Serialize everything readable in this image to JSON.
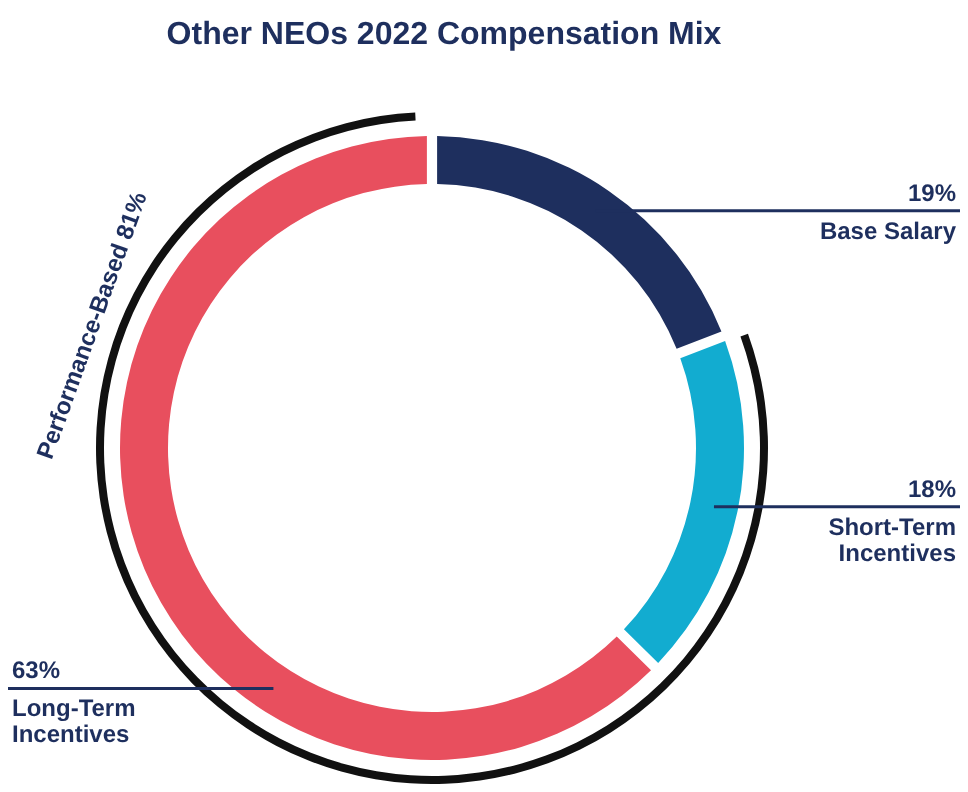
{
  "chart_data": {
    "type": "donut",
    "title": "Other NEOs 2022 Compensation Mix",
    "categories": [
      "Base Salary",
      "Short-Term Incentives",
      "Long-Term Incentives"
    ],
    "values": [
      19,
      18,
      63
    ],
    "colors": [
      "#1e2f5e",
      "#12acd0",
      "#e84f5e"
    ],
    "value_labels": [
      "19%",
      "18%",
      "63%"
    ],
    "annotations": [
      "Performance-Based 81%"
    ]
  }
}
